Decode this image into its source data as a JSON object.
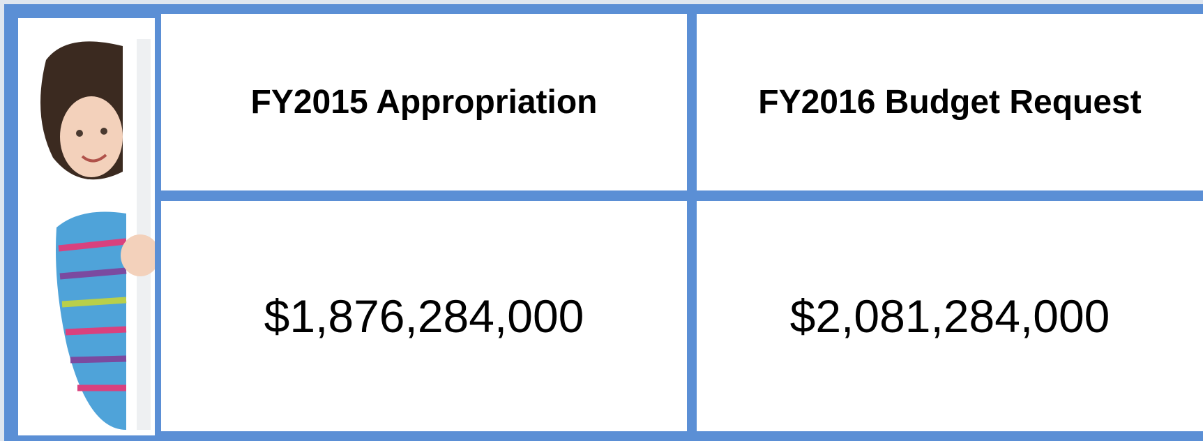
{
  "table": {
    "header": [
      "FY2015 Appropriation",
      "FY2016 Budget Request"
    ],
    "rows": [
      [
        "$1,876,284,000",
        "$2,081,284,000"
      ]
    ]
  }
}
